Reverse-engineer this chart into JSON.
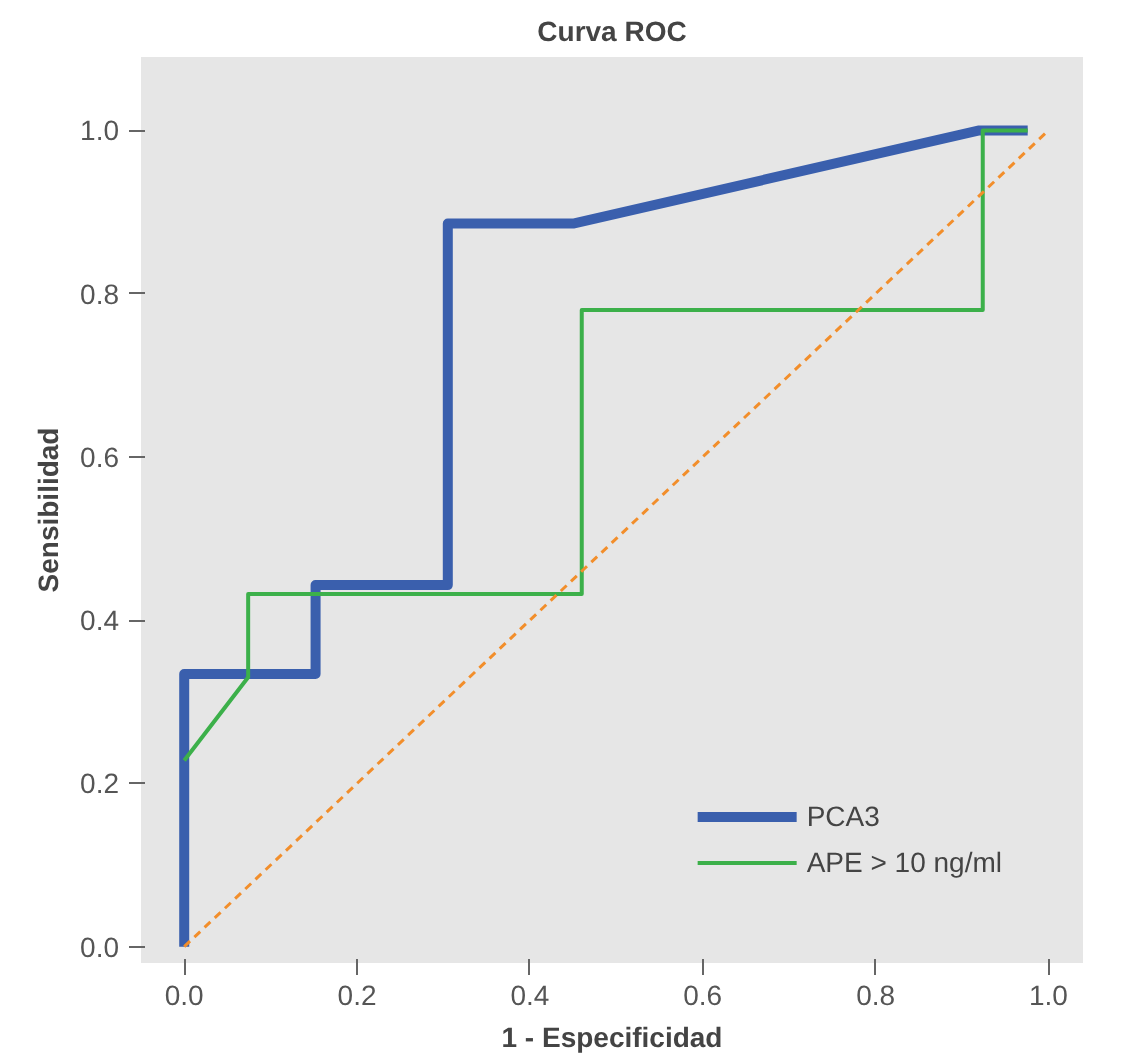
{
  "chart_data": {
    "type": "line",
    "title": "Curva ROC",
    "xlabel": "1 - Especificidad",
    "ylabel": "Sensibilidad",
    "xlim": [
      -0.05,
      1.04
    ],
    "ylim": [
      -0.02,
      1.09
    ],
    "xticks": [
      {
        "value": 0,
        "label": "0.0"
      },
      0.2,
      0.4,
      0.6,
      0.8,
      {
        "value": 1,
        "label": "1.0"
      }
    ],
    "yticks": [
      {
        "value": 0,
        "label": "0.0"
      },
      0.2,
      0.4,
      0.6,
      0.8,
      {
        "value": 1,
        "label": "1.0"
      }
    ],
    "legend": "bottom right",
    "marker": "none",
    "series": [
      {
        "name": "PCA3",
        "color": "#3a5fad",
        "x": [
          0,
          0,
          0.152,
          0.152,
          0.305,
          0.305,
          0.45,
          0.92,
          0.976
        ],
        "values": [
          0,
          0.334,
          0.334,
          0.443,
          0.443,
          0.886,
          0.886,
          1.0,
          1.0
        ]
      },
      {
        "name": "APE > 10 ng/ml",
        "color": "#3cb04a",
        "x": [
          0,
          0.074,
          0.074,
          0.46,
          0.46,
          0.924,
          0.924,
          0.976
        ],
        "values": [
          0.228,
          0.33,
          0.432,
          0.432,
          0.78,
          0.78,
          1.0,
          1.0
        ]
      },
      {
        "color": "#f28e2b",
        "line_style": "dashed",
        "x": [
          0,
          1
        ],
        "values": [
          0,
          1
        ]
      }
    ]
  }
}
